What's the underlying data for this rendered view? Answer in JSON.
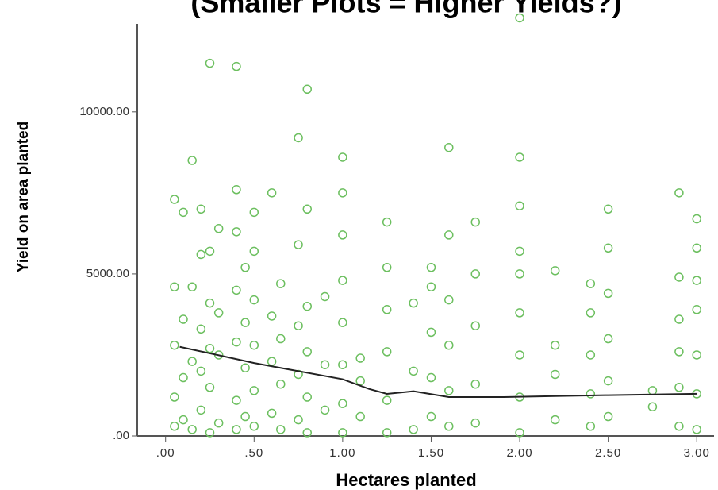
{
  "chart_data": {
    "type": "scatter",
    "title": "(Smaller Plots = Higher Yields?)",
    "x_label": "Hectares planted",
    "y_label": "Yield on area planted",
    "xlim": [
      -0.16,
      3.12
    ],
    "ylim": [
      0,
      13450
    ],
    "xticks": [
      {
        "value": 0,
        "label": ".00"
      },
      {
        "value": 0.5,
        "label": ".50"
      },
      {
        "value": 1,
        "label": "1.00"
      },
      {
        "value": 1.5,
        "label": "1.50"
      },
      {
        "value": 2,
        "label": "2.00"
      },
      {
        "value": 2.5,
        "label": "2.50"
      },
      {
        "value": 3,
        "label": "3.00"
      }
    ],
    "yticks": [
      {
        "value": 0,
        "label": ".00"
      },
      {
        "value": 5000,
        "label": "5000.00"
      },
      {
        "value": 10000,
        "label": "10000.00"
      }
    ],
    "series": [
      {
        "type": "scatter",
        "color": "#6cbf5f",
        "x": [
          0.05,
          0.05,
          0.05,
          0.05,
          0.05,
          0.1,
          0.1,
          0.1,
          0.1,
          0.15,
          0.15,
          0.15,
          0.15,
          0.2,
          0.2,
          0.2,
          0.2,
          0.2,
          0.25,
          0.25,
          0.25,
          0.25,
          0.25,
          0.25,
          0.3,
          0.3,
          0.3,
          0.3,
          0.4,
          0.4,
          0.4,
          0.4,
          0.4,
          0.4,
          0.4,
          0.45,
          0.45,
          0.45,
          0.45,
          0.5,
          0.5,
          0.5,
          0.5,
          0.5,
          0.5,
          0.6,
          0.6,
          0.6,
          0.6,
          0.65,
          0.65,
          0.65,
          0.65,
          0.75,
          0.75,
          0.75,
          0.75,
          0.75,
          0.8,
          0.8,
          0.8,
          0.8,
          0.8,
          0.8,
          0.9,
          0.9,
          0.9,
          1.0,
          1.0,
          1.0,
          1.0,
          1.0,
          1.0,
          1.0,
          1.0,
          1.1,
          1.1,
          1.1,
          1.25,
          1.25,
          1.25,
          1.25,
          1.25,
          1.25,
          1.4,
          1.4,
          1.4,
          1.5,
          1.5,
          1.5,
          1.5,
          1.5,
          1.6,
          1.6,
          1.6,
          1.6,
          1.6,
          1.6,
          1.75,
          1.75,
          1.75,
          1.75,
          1.75,
          2.0,
          2.0,
          2.0,
          2.0,
          2.0,
          2.0,
          2.0,
          2.0,
          2.0,
          2.2,
          2.2,
          2.2,
          2.2,
          2.4,
          2.4,
          2.4,
          2.4,
          2.4,
          2.5,
          2.5,
          2.5,
          2.5,
          2.5,
          2.5,
          2.75,
          2.75,
          2.9,
          2.9,
          2.9,
          2.9,
          2.9,
          2.9,
          3.0,
          3.0,
          3.0,
          3.0,
          3.0,
          3.0,
          3.0
        ],
        "y": [
          300,
          1200,
          2800,
          4600,
          7300,
          500,
          1800,
          3600,
          6900,
          200,
          2300,
          4600,
          8500,
          800,
          2000,
          3300,
          5600,
          7000,
          100,
          1500,
          2700,
          4100,
          5700,
          11500,
          400,
          2500,
          3800,
          6400,
          200,
          1100,
          2900,
          4500,
          6300,
          7600,
          11400,
          600,
          2100,
          3500,
          5200,
          300,
          1400,
          2800,
          4200,
          5700,
          6900,
          700,
          2300,
          3700,
          7500,
          200,
          1600,
          3000,
          4700,
          500,
          1900,
          3400,
          5900,
          9200,
          100,
          1200,
          2600,
          4000,
          7000,
          10700,
          800,
          2200,
          4300,
          100,
          1000,
          2200,
          3500,
          4800,
          6200,
          7500,
          8600,
          600,
          1700,
          2400,
          100,
          1100,
          2600,
          3900,
          5200,
          6600,
          200,
          2000,
          4100,
          600,
          1800,
          3200,
          4600,
          5200,
          300,
          1400,
          2800,
          4200,
          6200,
          8900,
          400,
          1600,
          3400,
          5000,
          6600,
          100,
          1200,
          2500,
          3800,
          5000,
          5700,
          7100,
          8600,
          12900,
          500,
          1900,
          2800,
          5100,
          300,
          1300,
          2500,
          3800,
          4700,
          600,
          1700,
          3000,
          4400,
          5800,
          7000,
          900,
          1400,
          300,
          1500,
          2600,
          3600,
          4900,
          7500,
          200,
          1300,
          2500,
          3900,
          4800,
          5800,
          6700
        ]
      },
      {
        "type": "line",
        "color": "#222222",
        "x": [
          0.08,
          0.25,
          0.5,
          0.75,
          1.0,
          1.15,
          1.25,
          1.4,
          1.6,
          1.9,
          2.2,
          2.5,
          3.0
        ],
        "y": [
          2750,
          2550,
          2250,
          2000,
          1750,
          1450,
          1300,
          1380,
          1200,
          1200,
          1230,
          1260,
          1300
        ]
      }
    ]
  }
}
